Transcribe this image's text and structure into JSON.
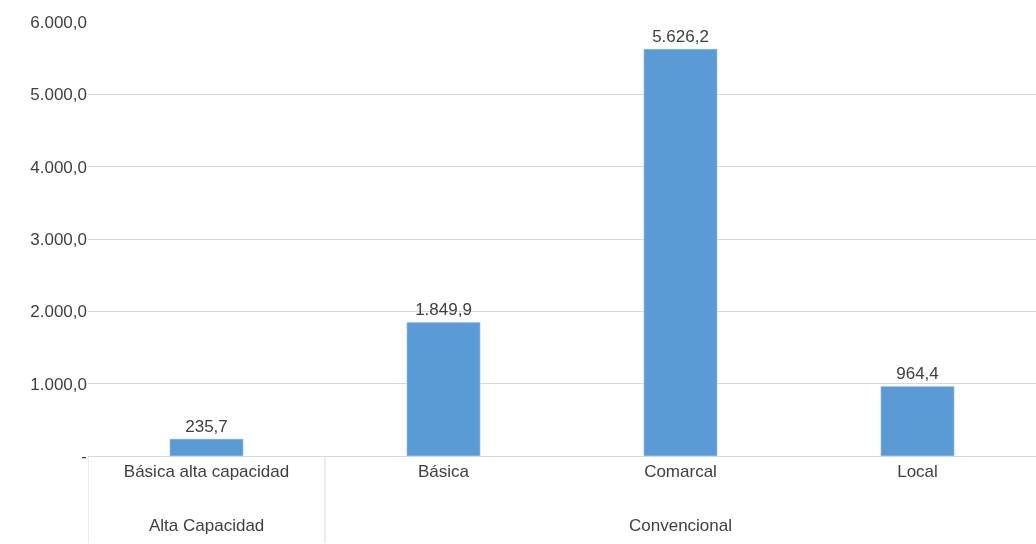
{
  "chart_data": {
    "type": "bar",
    "categories": [
      "Básica alta capacidad",
      "Básica",
      "Comarcal",
      "Local"
    ],
    "values": [
      235.7,
      1849.9,
      5626.2,
      964.4
    ],
    "value_labels": [
      "235,7",
      "1.849,9",
      "5.626,2",
      "964,4"
    ],
    "color": "#5b9bd5",
    "ylim": [
      0,
      6000
    ],
    "yticks": [
      {
        "value": 0,
        "label": "-"
      },
      {
        "value": 1000,
        "label": "1.000,0"
      },
      {
        "value": 2000,
        "label": "2.000,0"
      },
      {
        "value": 3000,
        "label": "3.000,0"
      },
      {
        "value": 4000,
        "label": "4.000,0"
      },
      {
        "value": 5000,
        "label": "5.000,0"
      },
      {
        "value": 6000,
        "label": "6.000,0"
      }
    ],
    "grid": "y",
    "annotations": [
      "Alta Capacidad",
      "Convencional"
    ]
  }
}
